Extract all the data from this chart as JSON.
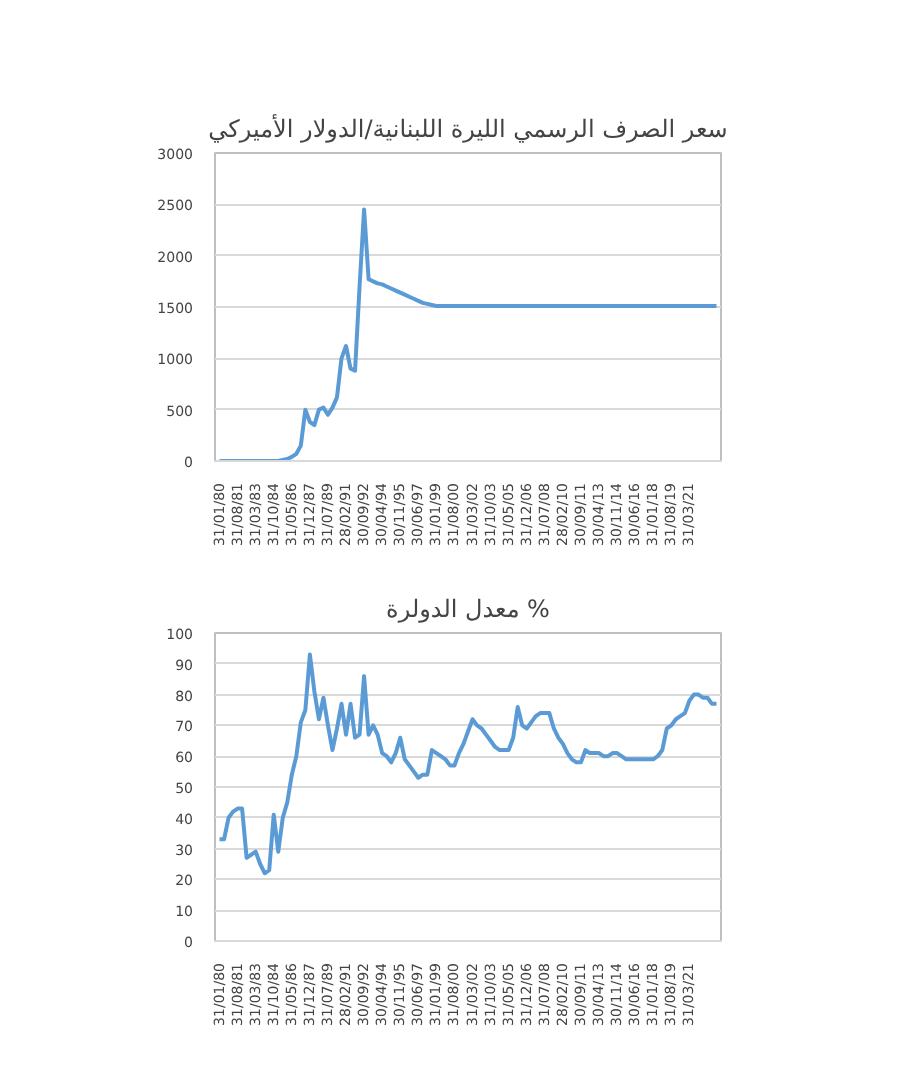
{
  "chart_data": [
    {
      "type": "line",
      "title": "سعر الصرف الرسمي الليرة اللبنانية/الدولار الأميركي",
      "categories": [
        "31/01/80",
        null,
        null,
        null,
        "31/08/81",
        null,
        null,
        null,
        "31/03/83",
        null,
        null,
        null,
        "31/10/84",
        null,
        null,
        null,
        "31/05/86",
        null,
        null,
        null,
        "31/12/87",
        null,
        null,
        null,
        "31/07/89",
        null,
        null,
        null,
        "28/02/91",
        null,
        null,
        null,
        "30/09/92",
        null,
        null,
        null,
        "30/04/94",
        null,
        null,
        null,
        "30/11/95",
        null,
        null,
        null,
        "30/06/97",
        null,
        null,
        null,
        "31/01/99",
        null,
        null,
        null,
        "31/08/00",
        null,
        null,
        null,
        "31/03/02",
        null,
        null,
        null,
        "31/10/03",
        null,
        null,
        null,
        "31/05/05",
        null,
        null,
        null,
        "31/12/06",
        null,
        null,
        null,
        "31/07/08",
        null,
        null,
        null,
        "28/02/10",
        null,
        null,
        null,
        "30/09/11",
        null,
        null,
        null,
        "30/04/13",
        null,
        null,
        null,
        "30/11/14",
        null,
        null,
        null,
        "30/06/16",
        null,
        null,
        null,
        "31/01/18",
        null,
        null,
        null,
        "31/08/19",
        null,
        null,
        null,
        "31/03/21",
        null,
        null,
        null,
        null,
        null,
        null
      ],
      "series": [
        {
          "color": "#5b9bd5",
          "values": [
            0,
            0,
            0,
            0,
            0,
            0,
            0,
            0,
            0,
            0,
            0,
            0,
            0,
            0,
            10,
            20,
            40,
            70,
            150,
            500,
            380,
            350,
            500,
            520,
            450,
            520,
            620,
            1000,
            1120,
            900,
            880,
            1700,
            2450,
            1770,
            1750,
            1730,
            1720,
            1700,
            1680,
            1660,
            1640,
            1620,
            1600,
            1580,
            1560,
            1540,
            1530,
            1520,
            1510,
            1510,
            1510,
            1510,
            1510,
            1510,
            1510,
            1510,
            1510,
            1510,
            1510,
            1510,
            1510,
            1510,
            1510,
            1510,
            1510,
            1510,
            1510,
            1510,
            1510,
            1510,
            1510,
            1510,
            1510,
            1510,
            1510,
            1510,
            1510,
            1510,
            1510,
            1510,
            1510,
            1510,
            1510,
            1510,
            1510,
            1510,
            1510,
            1510,
            1510,
            1510,
            1510,
            1510,
            1510,
            1510,
            1510,
            1510,
            1510,
            1510,
            1510,
            1510,
            1510,
            1510,
            1510,
            1510,
            1510,
            1510,
            1510,
            1510,
            1510,
            1510,
            1510
          ]
        }
      ],
      "ylim": [
        0,
        3000
      ],
      "yticks": [
        0,
        500,
        1000,
        1500,
        2000,
        2500,
        3000
      ],
      "grid": "y"
    },
    {
      "type": "line",
      "title": "معدل الدولرة %",
      "categories": [
        "31/01/80",
        null,
        null,
        null,
        "31/08/81",
        null,
        null,
        null,
        "31/03/83",
        null,
        null,
        null,
        "31/10/84",
        null,
        null,
        null,
        "31/05/86",
        null,
        null,
        null,
        "31/12/87",
        null,
        null,
        null,
        "31/07/89",
        null,
        null,
        null,
        "28/02/91",
        null,
        null,
        null,
        "30/09/92",
        null,
        null,
        null,
        "30/04/94",
        null,
        null,
        null,
        "30/11/95",
        null,
        null,
        null,
        "30/06/97",
        null,
        null,
        null,
        "31/01/99",
        null,
        null,
        null,
        "31/08/00",
        null,
        null,
        null,
        "31/03/02",
        null,
        null,
        null,
        "31/10/03",
        null,
        null,
        null,
        "31/05/05",
        null,
        null,
        null,
        "31/12/06",
        null,
        null,
        null,
        "31/07/08",
        null,
        null,
        null,
        "28/02/10",
        null,
        null,
        null,
        "30/09/11",
        null,
        null,
        null,
        "30/04/13",
        null,
        null,
        null,
        "30/11/14",
        null,
        null,
        null,
        "30/06/16",
        null,
        null,
        null,
        "31/01/18",
        null,
        null,
        null,
        "31/08/19",
        null,
        null,
        null,
        "31/03/21",
        null,
        null,
        null,
        null,
        null,
        null
      ],
      "series": [
        {
          "color": "#5b9bd5",
          "values": [
            33,
            33,
            40,
            42,
            43,
            43,
            27,
            28,
            29,
            25,
            22,
            23,
            41,
            29,
            40,
            45,
            54,
            60,
            71,
            75,
            93,
            81,
            72,
            79,
            70,
            62,
            69,
            77,
            67,
            77,
            66,
            67,
            86,
            67,
            70,
            67,
            61,
            60,
            58,
            61,
            66,
            59,
            57,
            55,
            53,
            54,
            54,
            62,
            61,
            60,
            59,
            57,
            57,
            61,
            64,
            68,
            72,
            70,
            69,
            67,
            65,
            63,
            62,
            62,
            62,
            66,
            76,
            70,
            69,
            71,
            73,
            74,
            74,
            74,
            69,
            66,
            64,
            61,
            59,
            58,
            58,
            62,
            61,
            61,
            61,
            60,
            60,
            61,
            61,
            60,
            59,
            59,
            59,
            59,
            59,
            59,
            59,
            60,
            62,
            69,
            70,
            72,
            73,
            74,
            78,
            80,
            80,
            79,
            79,
            77,
            77
          ]
        }
      ],
      "ylim": [
        0,
        100
      ],
      "yticks": [
        0,
        10,
        20,
        30,
        40,
        50,
        60,
        70,
        80,
        90,
        100
      ],
      "grid": "y"
    }
  ]
}
